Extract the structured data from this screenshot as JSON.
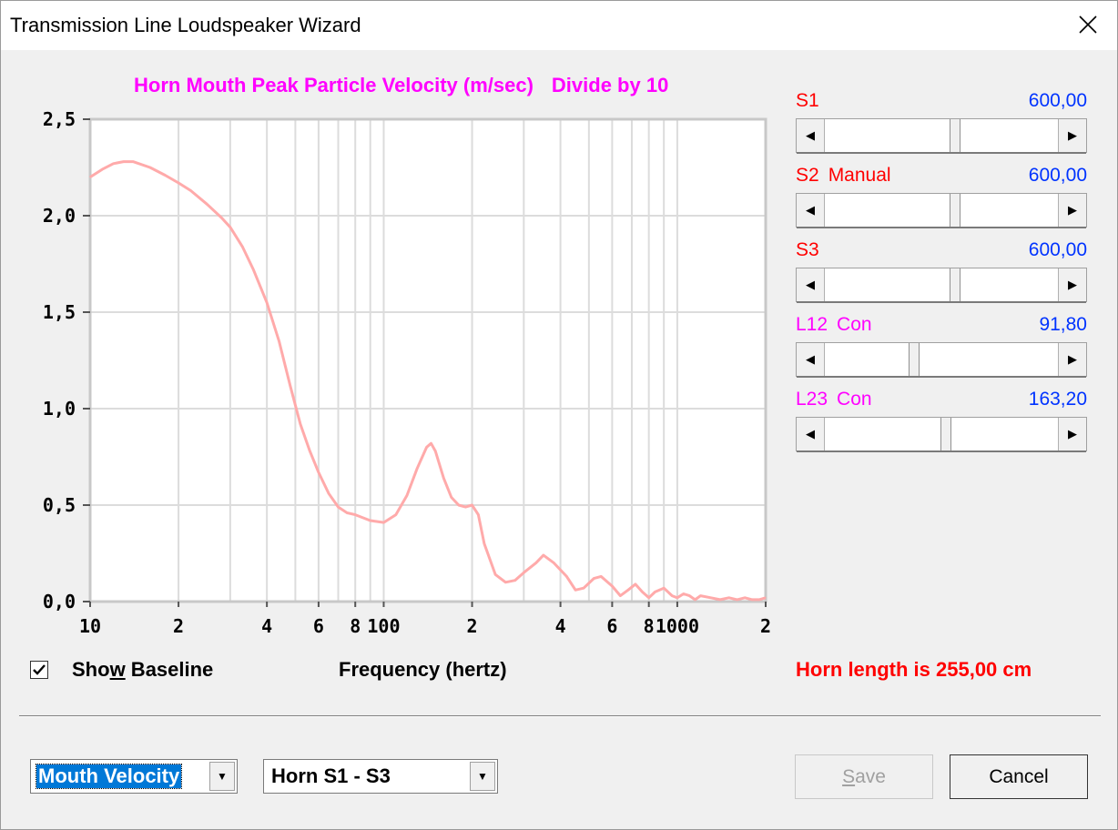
{
  "window": {
    "title": "Transmission Line Loudspeaker Wizard"
  },
  "chart": {
    "title": "Horn Mouth Peak Particle Velocity (m/sec)",
    "subtitle": "Divide by 10",
    "xlabel": "Frequency (hertz)"
  },
  "show_baseline": {
    "label_pre": "Sho",
    "label_ul": "w",
    "label_post": " Baseline",
    "checked": true
  },
  "horn_length": "Horn length is 255,00 cm",
  "params": [
    {
      "label": "S1",
      "sub": "",
      "value": "600,00",
      "color": "#ff0000",
      "position": 0.56
    },
    {
      "label": "S2",
      "sub": "Manual",
      "value": "600,00",
      "color": "#ff0000",
      "position": 0.56
    },
    {
      "label": "S3",
      "sub": "",
      "value": "600,00",
      "color": "#ff0000",
      "position": 0.56
    },
    {
      "label": "L12",
      "sub": "Con",
      "value": "91,80",
      "color": "#ff00ff",
      "position": 0.38
    },
    {
      "label": "L23",
      "sub": "Con",
      "value": "163,20",
      "color": "#ff00ff",
      "position": 0.52
    }
  ],
  "controls": {
    "plot_select": "Mouth Velocity",
    "section_select": "Horn S1 - S3",
    "save_pre": "",
    "save_ul": "S",
    "save_post": "ave",
    "cancel": "Cancel"
  },
  "chart_data": {
    "type": "line",
    "xscale": "log",
    "xlim": [
      10,
      2000
    ],
    "ylim": [
      0,
      2.5
    ],
    "xticks": [
      {
        "v": 10,
        "label": "10"
      },
      {
        "v": 20,
        "label": "2"
      },
      {
        "v": 40,
        "label": "4"
      },
      {
        "v": 60,
        "label": "6"
      },
      {
        "v": 80,
        "label": "8"
      },
      {
        "v": 100,
        "label": "100"
      },
      {
        "v": 200,
        "label": "2"
      },
      {
        "v": 400,
        "label": "4"
      },
      {
        "v": 600,
        "label": "6"
      },
      {
        "v": 800,
        "label": "8"
      },
      {
        "v": 1000,
        "label": "1000"
      },
      {
        "v": 2000,
        "label": "2"
      }
    ],
    "yticks": [
      {
        "v": 0,
        "label": "0,0"
      },
      {
        "v": 0.5,
        "label": "0,5"
      },
      {
        "v": 1.0,
        "label": "1,0"
      },
      {
        "v": 1.5,
        "label": "1,5"
      },
      {
        "v": 2.0,
        "label": "2,0"
      },
      {
        "v": 2.5,
        "label": "2,5"
      }
    ],
    "grid": true,
    "line_color": "#ffaaaa",
    "series": [
      {
        "x": [
          10,
          11,
          12,
          13,
          14,
          16,
          18,
          20,
          22,
          25,
          28,
          30,
          33,
          36,
          40,
          44,
          48,
          52,
          56,
          60,
          65,
          70,
          75,
          80,
          90,
          100,
          110,
          120,
          130,
          140,
          145,
          150,
          160,
          170,
          180,
          190,
          200,
          210,
          220,
          240,
          260,
          280,
          300,
          330,
          350,
          380,
          420,
          450,
          480,
          520,
          550,
          600,
          640,
          680,
          720,
          760,
          800,
          840,
          900,
          960,
          1000,
          1050,
          1100,
          1150,
          1200,
          1300,
          1400,
          1500,
          1600,
          1700,
          1800,
          1900,
          2000
        ],
        "y": [
          2.2,
          2.24,
          2.27,
          2.28,
          2.28,
          2.25,
          2.21,
          2.17,
          2.13,
          2.06,
          1.99,
          1.94,
          1.84,
          1.72,
          1.55,
          1.35,
          1.12,
          0.92,
          0.78,
          0.67,
          0.56,
          0.49,
          0.46,
          0.45,
          0.42,
          0.41,
          0.45,
          0.55,
          0.69,
          0.8,
          0.82,
          0.78,
          0.64,
          0.54,
          0.5,
          0.49,
          0.5,
          0.45,
          0.3,
          0.14,
          0.1,
          0.11,
          0.15,
          0.2,
          0.24,
          0.2,
          0.13,
          0.06,
          0.07,
          0.12,
          0.13,
          0.08,
          0.03,
          0.06,
          0.09,
          0.05,
          0.02,
          0.05,
          0.07,
          0.03,
          0.02,
          0.04,
          0.03,
          0.01,
          0.03,
          0.02,
          0.01,
          0.02,
          0.01,
          0.02,
          0.01,
          0.01,
          0.02
        ]
      }
    ]
  }
}
